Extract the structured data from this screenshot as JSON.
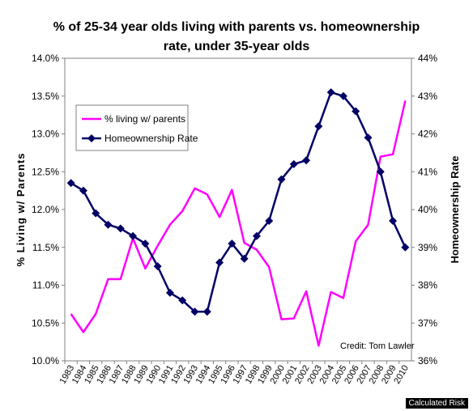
{
  "chart_data": {
    "type": "line",
    "title_lines": [
      "% of 25-34 year olds living with parents vs. homeownership",
      "rate, under 35-year olds"
    ],
    "ylabel_left": "% Living w/ Parents",
    "ylabel_right": "Homeownership Rate",
    "ylim_left": [
      10.0,
      14.0
    ],
    "ylim_right": [
      36,
      44
    ],
    "yticks_left": [
      "10.0%",
      "10.5%",
      "11.0%",
      "11.5%",
      "12.0%",
      "12.5%",
      "13.0%",
      "13.5%",
      "14.0%"
    ],
    "yticks_right": [
      "36%",
      "37%",
      "38%",
      "39%",
      "40%",
      "41%",
      "42%",
      "43%",
      "44%"
    ],
    "categories": [
      "1983",
      "1984",
      "1985",
      "1986",
      "1987",
      "1988",
      "1989",
      "1990",
      "1991",
      "1992",
      "1993",
      "1994",
      "1995",
      "1996",
      "1997",
      "1998",
      "1999",
      "2000",
      "2001",
      "2002",
      "2003",
      "2004",
      "2005",
      "2006",
      "2007",
      "2008",
      "2009",
      "2010"
    ],
    "series": [
      {
        "name": "% living w/ parents",
        "axis": "left",
        "color": "#ff00ff",
        "marker": "none",
        "values": [
          10.62,
          10.38,
          10.62,
          11.08,
          11.08,
          11.62,
          11.22,
          11.52,
          11.8,
          11.98,
          12.28,
          12.2,
          11.9,
          12.26,
          11.56,
          11.47,
          11.24,
          10.55,
          10.56,
          10.92,
          10.2,
          10.91,
          10.83,
          11.58,
          11.8,
          12.7,
          12.73,
          13.44
        ]
      },
      {
        "name": "Homeownership Rate",
        "axis": "right",
        "color": "#000066",
        "marker": "diamond",
        "values": [
          40.7,
          40.5,
          39.9,
          39.6,
          39.5,
          39.3,
          39.1,
          38.5,
          37.8,
          37.6,
          37.3,
          37.3,
          38.6,
          39.1,
          38.7,
          39.3,
          39.7,
          40.8,
          41.2,
          41.3,
          42.2,
          43.1,
          43.0,
          42.6,
          41.9,
          41.0,
          39.7,
          39.0
        ]
      }
    ],
    "legend_position": "upper-left",
    "grid": false
  },
  "annotations": {
    "credit": "Credit: Tom Lawler",
    "watermark": "Calculated Risk"
  }
}
